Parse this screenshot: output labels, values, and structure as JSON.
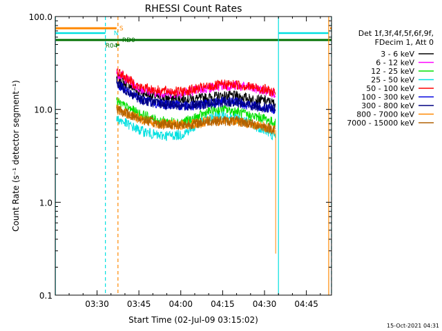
{
  "chart_data": {
    "type": "line",
    "title": "RHESSI Count Rates",
    "xlabel": "Start Time (02-Jul-09 03:15:02)",
    "ylabel": "Count Rate (s⁻¹ detector segment⁻¹)",
    "yscale": "log",
    "ylim": [
      0.1,
      100.0
    ],
    "xlim": [
      "03:15:02",
      "04:54:00"
    ],
    "x_ticks": [
      "03:30",
      "03:45",
      "04:00",
      "04:15",
      "04:30",
      "04:45"
    ],
    "y_ticks": [
      "0.1",
      "1.0",
      "10.0",
      "100.0"
    ],
    "grid": false,
    "legend_position": "right",
    "legend_header": [
      "Det 1f,3f,4f,5f,6f,9f,",
      "FDecim 1, Att 0"
    ],
    "time_x": [
      "03:37",
      "03:45",
      "03:52",
      "04:00",
      "04:05",
      "04:10",
      "04:15",
      "04:20",
      "04:25",
      "04:30",
      "04:34"
    ],
    "series": [
      {
        "name": "3 - 6 keV",
        "color": "#000000",
        "values": [
          22,
          15.5,
          13.5,
          13,
          13,
          13.5,
          14,
          14,
          13,
          12.5,
          11.5
        ]
      },
      {
        "name": "6 - 12 keV",
        "color": "#ff00ff",
        "values": [
          25,
          17,
          15,
          15,
          16,
          17,
          18,
          18,
          17,
          16,
          15
        ]
      },
      {
        "name": "12 - 25 keV",
        "color": "#00e000",
        "values": [
          12,
          9,
          7.5,
          7.2,
          8,
          9.5,
          10,
          9.5,
          8.5,
          8,
          7
        ]
      },
      {
        "name": "25 - 50 keV",
        "color": "#00e0e0",
        "values": [
          8,
          6,
          5.2,
          5.3,
          6.5,
          8,
          8.5,
          8,
          7,
          6,
          5
        ]
      },
      {
        "name": "50 - 100 keV",
        "color": "#ff0000",
        "values": [
          26,
          17.5,
          16,
          15.5,
          16.5,
          17.5,
          18.5,
          18.5,
          17.5,
          16.5,
          15
        ]
      },
      {
        "name": "100 - 300 keV",
        "color": "#0000e0",
        "values": [
          19,
          13,
          11.5,
          11,
          11,
          11.5,
          12,
          12,
          11,
          10.5,
          10
        ]
      },
      {
        "name": "300 - 800 keV",
        "color": "#000080",
        "values": [
          19,
          13,
          11.5,
          11,
          11,
          11.5,
          12,
          12,
          11,
          10.5,
          10
        ]
      },
      {
        "name": "800 - 7000 keV",
        "color": "#ff8800",
        "values": [
          10,
          8,
          7,
          6.8,
          7,
          7.5,
          7.5,
          7.5,
          7,
          6.5,
          6
        ]
      },
      {
        "name": "7000 - 15000 keV",
        "color": "#b06000",
        "values": [
          10,
          8,
          7,
          6.8,
          7,
          7.5,
          7.5,
          7.5,
          7,
          6.5,
          6
        ]
      }
    ],
    "annotations": [
      {
        "label": "S",
        "color": "#ff8800"
      },
      {
        "label": "N",
        "color": "#00e0e0"
      },
      {
        "label": "RD0",
        "color": "#007000"
      },
      {
        "label": "R04",
        "color": "#007000"
      }
    ],
    "timestamp": "15-Oct-2021 04:31"
  }
}
